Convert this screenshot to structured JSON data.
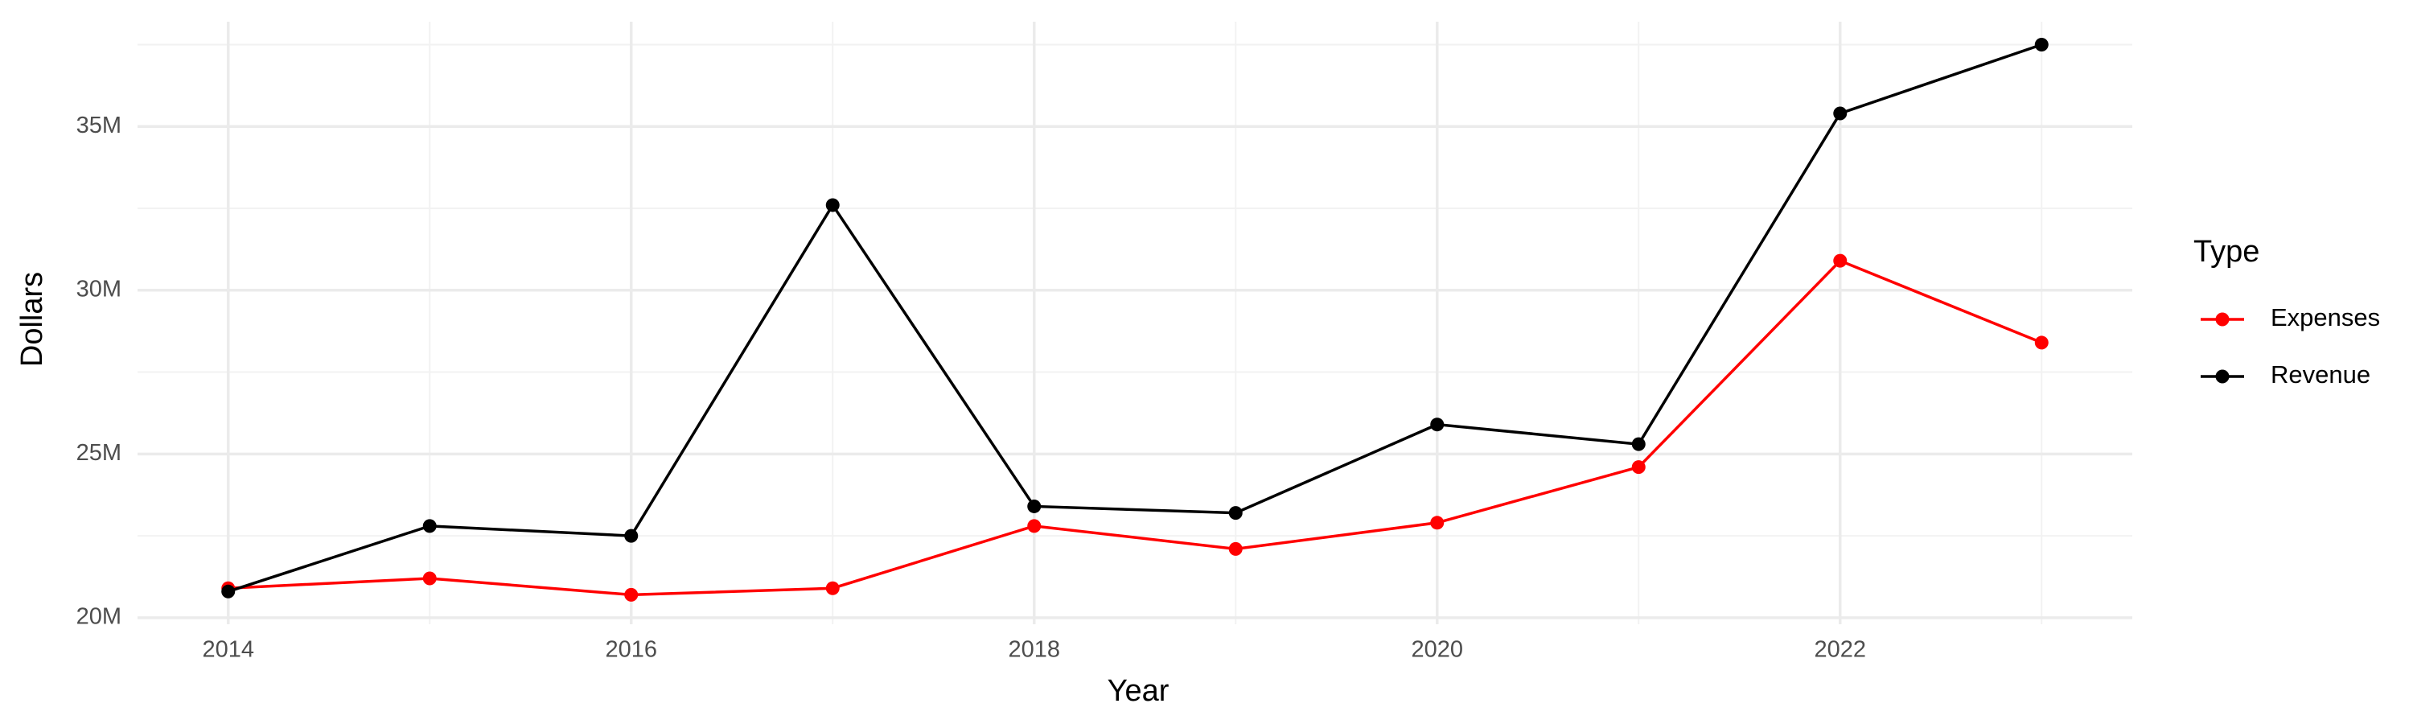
{
  "chart_data": {
    "type": "line",
    "x_label": "Year",
    "y_label": "Dollars",
    "legend_title": "Type",
    "x": [
      2014,
      2015,
      2016,
      2017,
      2018,
      2019,
      2020,
      2021,
      2022,
      2023
    ],
    "series": [
      {
        "name": "Expenses",
        "color": "#ff0000",
        "values": [
          20900000,
          21200000,
          20700000,
          20900000,
          22800000,
          22100000,
          22900000,
          24600000,
          30900000,
          28400000
        ]
      },
      {
        "name": "Revenue",
        "color": "#000000",
        "values": [
          20800000,
          22800000,
          22500000,
          32600000,
          23400000,
          23200000,
          25900000,
          25300000,
          35400000,
          37500000
        ]
      }
    ],
    "xlim": [
      2013.55,
      2023.45
    ],
    "xticks": [
      2014,
      2016,
      2018,
      2020,
      2022
    ],
    "xminorticks": [
      2015,
      2017,
      2019,
      2021,
      2023
    ],
    "ylim": [
      19800000,
      38200000
    ],
    "yticks": [
      {
        "value": 20000000,
        "label": "20M"
      },
      {
        "value": 25000000,
        "label": "25M"
      },
      {
        "value": 30000000,
        "label": "30M"
      },
      {
        "value": 35000000,
        "label": "35M"
      }
    ],
    "yminorticks": [
      22500000,
      27500000,
      32500000,
      37500000
    ],
    "grid": true,
    "legend": "right"
  }
}
